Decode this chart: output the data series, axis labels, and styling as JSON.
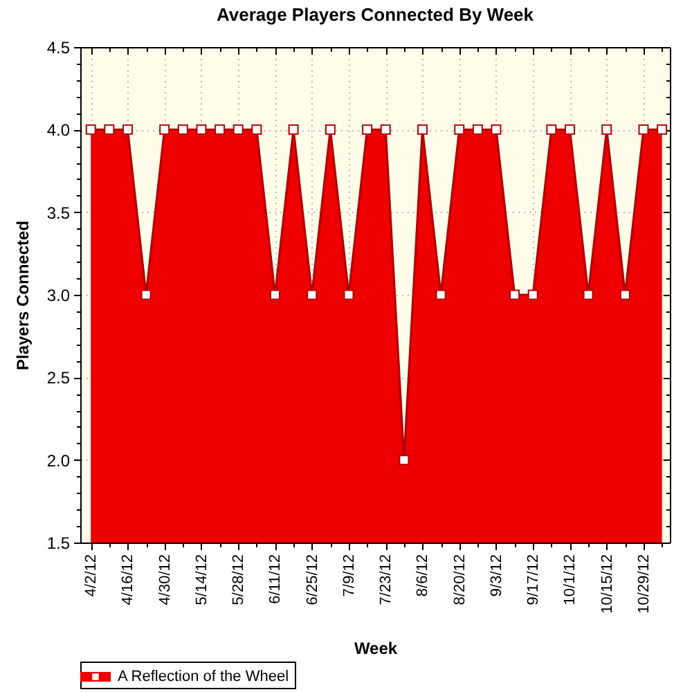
{
  "chart_data": {
    "type": "area",
    "title": "Average Players Connected By Week",
    "xlabel": "Week",
    "ylabel": "Players Connected",
    "x": [
      "--04-02",
      "--04-09",
      "--04-16",
      "--04-23",
      "--04-30",
      "--05-07",
      "--05-14",
      "--05-21",
      "--05-28",
      "--06-04",
      "--06-11",
      "--06-18",
      "--06-25",
      "--07-02",
      "--07-09",
      "--07-16",
      "--07-23",
      "--07-30",
      "--08-06",
      "--08-13",
      "--08-20",
      "--08-27",
      "--09-03",
      "--09-10",
      "--09-17",
      "--09-24",
      "--10-01",
      "--10-08",
      "--10-15",
      "--10-22",
      "--10-29",
      "--11-05"
    ],
    "series": [
      {
        "name": "A Reflection of the Wheel",
        "color": "#ee0000",
        "values": [
          4,
          4,
          4,
          3,
          4,
          4,
          4,
          4,
          4,
          4,
          3,
          4,
          3,
          4,
          3,
          4,
          4,
          2,
          4,
          3,
          4,
          4,
          4,
          3,
          3,
          4,
          4,
          3,
          4,
          3,
          4,
          4
        ]
      }
    ],
    "xlim": [
      "--03-29",
      "--11-08"
    ],
    "xticks": [
      {
        "value": "--04-02",
        "label": "4/2/12"
      },
      {
        "value": "--04-09",
        "label": null
      },
      {
        "value": "--04-16",
        "label": "4/16/12"
      },
      {
        "value": "--04-23",
        "label": null
      },
      {
        "value": "--04-30",
        "label": "4/30/12"
      },
      {
        "value": "--05-07",
        "label": null
      },
      {
        "value": "--05-14",
        "label": "5/14/12"
      },
      {
        "value": "--05-21",
        "label": null
      },
      {
        "value": "--05-28",
        "label": "5/28/12"
      },
      {
        "value": "--06-04",
        "label": null
      },
      {
        "value": "--06-11",
        "label": "6/11/12"
      },
      {
        "value": "--06-18",
        "label": null
      },
      {
        "value": "--06-25",
        "label": "6/25/12"
      },
      {
        "value": "--07-02",
        "label": null
      },
      {
        "value": "--07-09",
        "label": "7/9/12"
      },
      {
        "value": "--07-16",
        "label": null
      },
      {
        "value": "--07-23",
        "label": "7/23/12"
      },
      {
        "value": "--07-30",
        "label": null
      },
      {
        "value": "--08-06",
        "label": "8/6/12"
      },
      {
        "value": "--08-13",
        "label": null
      },
      {
        "value": "--08-20",
        "label": "8/20/12"
      },
      {
        "value": "--08-27",
        "label": null
      },
      {
        "value": "--09-03",
        "label": "9/3/12"
      },
      {
        "value": "--09-10",
        "label": null
      },
      {
        "value": "--09-17",
        "label": "9/17/12"
      },
      {
        "value": "--09-24",
        "label": null
      },
      {
        "value": "--10-01",
        "label": "10/1/12"
      },
      {
        "value": "--10-08",
        "label": null
      },
      {
        "value": "--10-15",
        "label": "10/15/12"
      },
      {
        "value": "--10-22",
        "label": null
      },
      {
        "value": "--10-29",
        "label": "10/29/12"
      },
      {
        "value": "--11-05",
        "label": null
      }
    ],
    "ylim": [
      1.5,
      4.5
    ],
    "yticks": [
      1.5,
      {
        "value": 1.6,
        "label": null
      },
      {
        "value": 1.7,
        "label": null
      },
      {
        "value": 1.8,
        "label": null
      },
      {
        "value": 1.9,
        "label": null
      },
      {
        "value": 2,
        "label": "2.0"
      },
      {
        "value": 2.1,
        "label": null
      },
      {
        "value": 2.2,
        "label": null
      },
      {
        "value": 2.3,
        "label": null
      },
      {
        "value": 2.4,
        "label": null
      },
      2.5,
      {
        "value": 2.6,
        "label": null
      },
      {
        "value": 2.7,
        "label": null
      },
      {
        "value": 2.8,
        "label": null
      },
      {
        "value": 2.9,
        "label": null
      },
      {
        "value": 3,
        "label": "3.0"
      },
      {
        "value": 3.1,
        "label": null
      },
      {
        "value": 3.2,
        "label": null
      },
      {
        "value": 3.3,
        "label": null
      },
      {
        "value": 3.4,
        "label": null
      },
      3.5,
      {
        "value": 3.6,
        "label": null
      },
      {
        "value": 3.7,
        "label": null
      },
      {
        "value": 3.8,
        "label": null
      },
      {
        "value": 3.9,
        "label": null
      },
      {
        "value": 4,
        "label": "4.0"
      },
      {
        "value": 4.1,
        "label": null
      },
      {
        "value": 4.2,
        "label": null
      },
      {
        "value": 4.3,
        "label": null
      },
      {
        "value": 4.4,
        "label": null
      },
      4.5
    ],
    "grid": true,
    "legend": "bottom left",
    "marker": "square"
  }
}
